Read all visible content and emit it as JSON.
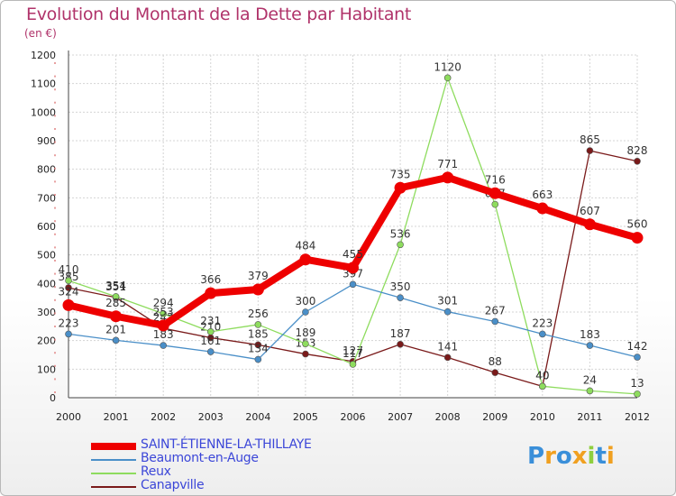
{
  "chart_data": {
    "type": "line",
    "title": "Evolution du Montant de la Dette par Habitant",
    "subtitle": "(en €)",
    "x": [
      "2000",
      "2001",
      "2002",
      "2003",
      "2004",
      "2005",
      "2006",
      "2007",
      "2008",
      "2009",
      "2010",
      "2011",
      "2012"
    ],
    "ylim": [
      0,
      1200
    ],
    "yticks": [
      0,
      100,
      200,
      300,
      400,
      500,
      600,
      700,
      800,
      900,
      1000,
      1100,
      1200
    ],
    "grid": true,
    "legend_position": "bottom-left",
    "series": [
      {
        "name": "SAINT-ÉTIENNE-LA-THILLAYE",
        "color": "#ee0000",
        "values": [
          324,
          285,
          253,
          366,
          379,
          484,
          455,
          735,
          771,
          716,
          663,
          607,
          560
        ]
      },
      {
        "name": "Beaumont-en-Auge",
        "color": "#4a8fc8",
        "values": [
          223,
          201,
          183,
          161,
          134,
          300,
          397,
          350,
          301,
          267,
          223,
          183,
          142
        ]
      },
      {
        "name": "Reux",
        "color": "#8edc5e",
        "values": [
          410,
          354,
          294,
          231,
          256,
          189,
          117,
          536,
          1120,
          677,
          40,
          24,
          13
        ]
      },
      {
        "name": "Canapville",
        "color": "#7a1a1a",
        "values": [
          385,
          351,
          243,
          210,
          185,
          153,
          127,
          187,
          141,
          88,
          40,
          865,
          828
        ]
      }
    ]
  },
  "branding": {
    "logo_letters": [
      "P",
      "r",
      "o",
      "x",
      "i",
      "t",
      "i"
    ],
    "logo_colors": [
      "#3a8fd9",
      "#f0a020",
      "#3a8fd9",
      "#f0a020",
      "#8fcf3e",
      "#3a8fd9",
      "#f0a020"
    ]
  }
}
